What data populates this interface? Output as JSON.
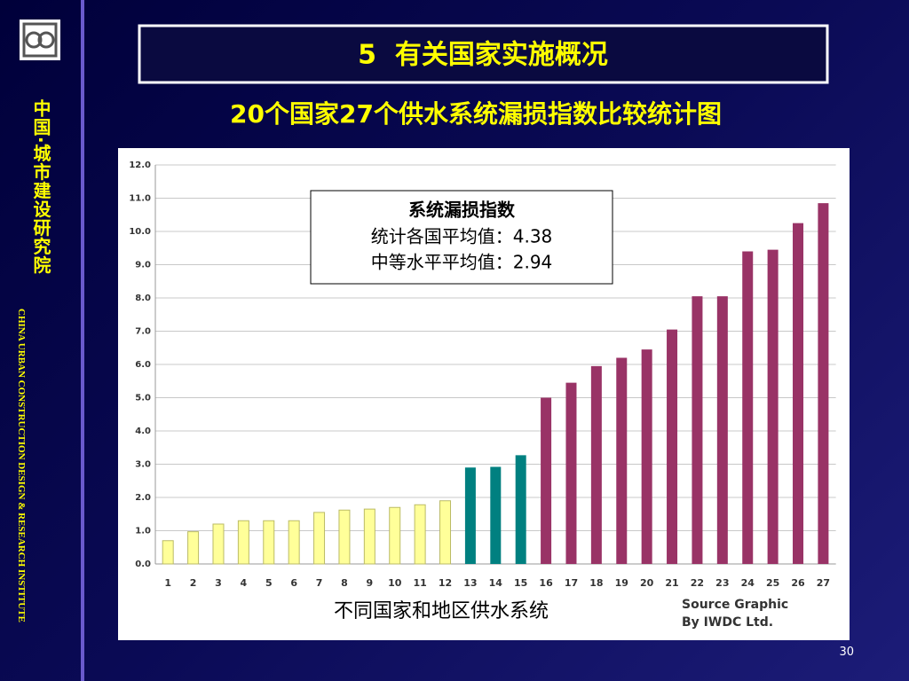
{
  "slide": {
    "header": "5  有关国家实施概况",
    "institute_cn": "中国·城市建设研究院",
    "institute_en": "CHINA URBAN CONSTRUCTION DESIGN & RESEARCH INSTITUTE",
    "page_number": "30"
  },
  "chart_data": {
    "type": "bar",
    "title": "20个国家27个供水系统漏损指数比较统计图",
    "x_label": "不同国家和地区供水系统",
    "annotation": {
      "title": "系统漏损指数",
      "lines": [
        "统计各国平均值：4.38",
        "中等水平平均值：2.94"
      ]
    },
    "source": [
      "Source Graphic",
      "By IWDC Ltd."
    ],
    "categories": [
      "1",
      "2",
      "3",
      "4",
      "5",
      "6",
      "7",
      "8",
      "9",
      "10",
      "11",
      "12",
      "13",
      "14",
      "15",
      "16",
      "17",
      "18",
      "19",
      "20",
      "21",
      "22",
      "23",
      "24",
      "25",
      "26",
      "27"
    ],
    "values": [
      0.7,
      0.97,
      1.2,
      1.3,
      1.3,
      1.3,
      1.55,
      1.62,
      1.65,
      1.7,
      1.78,
      1.9,
      2.9,
      2.92,
      3.27,
      5.0,
      5.45,
      5.95,
      6.2,
      6.45,
      7.05,
      8.05,
      8.05,
      9.4,
      9.45,
      10.25,
      10.85
    ],
    "colors": [
      "#ffff99",
      "#ffff99",
      "#ffff99",
      "#ffff99",
      "#ffff99",
      "#ffff99",
      "#ffff99",
      "#ffff99",
      "#ffff99",
      "#ffff99",
      "#ffff99",
      "#ffff99",
      "#008080",
      "#008080",
      "#008080",
      "#993366",
      "#993366",
      "#993366",
      "#993366",
      "#993366",
      "#993366",
      "#993366",
      "#993366",
      "#993366",
      "#993366",
      "#993366",
      "#993366"
    ],
    "ylim": [
      0,
      12
    ],
    "yticks": [
      {
        "value": 0,
        "label": "0.0"
      },
      {
        "value": 1,
        "label": "1.0"
      },
      {
        "value": 2,
        "label": "2.0"
      },
      {
        "value": 3,
        "label": "3.0"
      },
      {
        "value": 4,
        "label": "4.0"
      },
      {
        "value": 5,
        "label": "5.0"
      },
      {
        "value": 6,
        "label": "6.0"
      },
      {
        "value": 7,
        "label": "7.0"
      },
      {
        "value": 8,
        "label": "8.0"
      },
      {
        "value": 9,
        "label": "9.0"
      },
      {
        "value": 10,
        "label": "10.0"
      },
      {
        "value": 11,
        "label": "11.0"
      },
      {
        "value": 12,
        "label": "12.0"
      }
    ],
    "grid": true
  }
}
